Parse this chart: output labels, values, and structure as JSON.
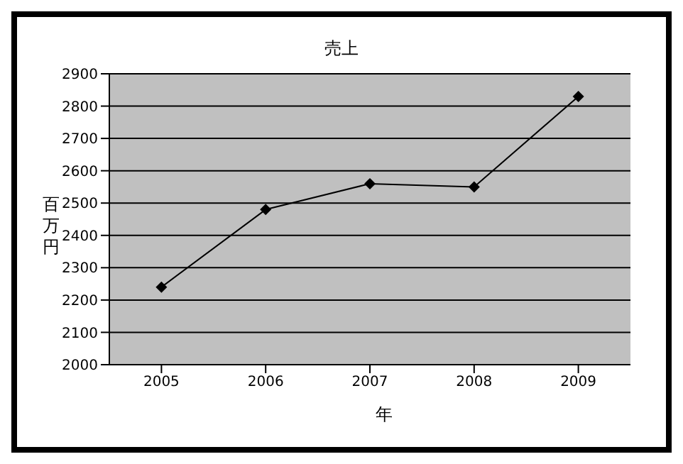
{
  "chart_data": {
    "type": "line",
    "title": "売上",
    "xlabel": "年",
    "ylabel": "百万円",
    "categories": [
      "2005",
      "2006",
      "2007",
      "2008",
      "2009"
    ],
    "series": [
      {
        "color": "#000000",
        "values": [
          2240,
          2480,
          2560,
          2550,
          2830
        ]
      }
    ],
    "ylim": [
      2000,
      2900
    ],
    "yticks": [
      2000,
      2100,
      2200,
      2300,
      2400,
      2500,
      2600,
      2700,
      2800,
      2900
    ],
    "grid": "y",
    "marker": "diamond",
    "line_style": "solid",
    "legend": false
  }
}
